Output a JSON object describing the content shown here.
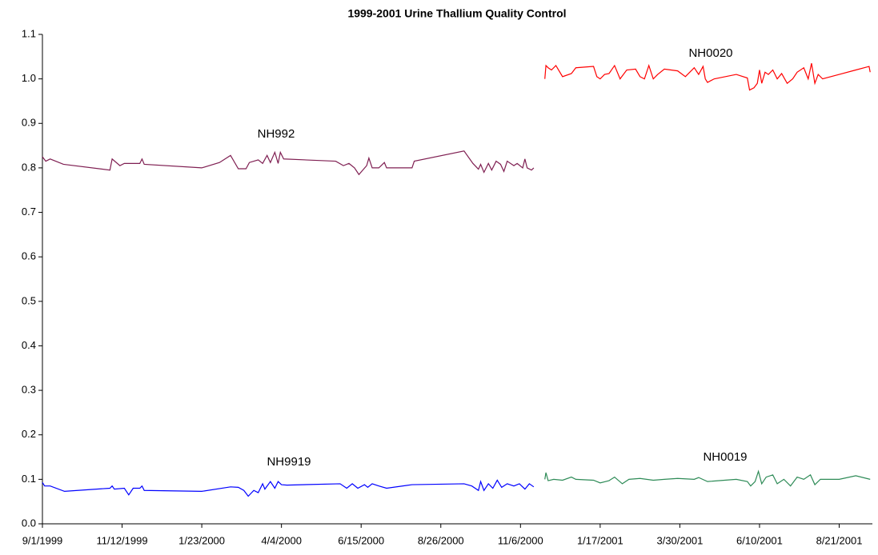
{
  "chart_data": {
    "type": "line",
    "title": "1999-2001 Urine Thallium Quality Control",
    "xlim": [
      "9/1/1999",
      "9/20/2001"
    ],
    "xticks": [
      "9/1/1999",
      "11/12/1999",
      "1/23/2000",
      "4/4/2000",
      "6/15/2000",
      "8/26/2000",
      "11/6/2000",
      "1/17/2001",
      "3/30/2001",
      "6/10/2001",
      "8/21/2001"
    ],
    "ylim": [
      0,
      1.1
    ],
    "yticks": [
      {
        "value": 0,
        "label": "0.0"
      },
      0.1,
      0.2,
      0.3,
      0.4,
      0.5,
      0.6,
      0.7,
      0.8,
      0.9,
      {
        "value": 1,
        "label": "1.0"
      },
      1.1
    ],
    "grid": false,
    "series": [
      {
        "name": "NH992",
        "color": "#7f1f52",
        "x": [
          "9/1/1999",
          "9/4/1999",
          "9/8/1999",
          "9/20/1999",
          "11/1/1999",
          "11/3/1999",
          "11/10/1999",
          "11/14/1999",
          "11/28/1999",
          "11/30/1999",
          "12/2/1999",
          "1/23/2000",
          "2/8/2000",
          "2/18/2000",
          "2/25/2000",
          "3/3/2000",
          "3/6/2000",
          "3/14/2000",
          "3/18/2000",
          "3/22/2000",
          "3/25/2000",
          "3/29/2000",
          "4/1/2000",
          "4/3/2000",
          "4/6/2000",
          "5/23/2000",
          "5/30/2000",
          "6/4/2000",
          "6/9/2000",
          "6/13/2000",
          "6/20/2000",
          "6/22/2000",
          "6/25/2000",
          "7/1/2000",
          "7/6/2000",
          "7/8/2000",
          "7/31/2000",
          "8/2/2000",
          "9/16/2000",
          "9/24/2000",
          "9/29/2000",
          "10/1/2000",
          "10/4/2000",
          "10/8/2000",
          "10/11/2000",
          "10/15/2000",
          "10/19/2000",
          "10/22/2000",
          "10/25/2000",
          "10/31/2000",
          "11/3/2000",
          "11/8/2000",
          "11/10/2000",
          "11/12/2000",
          "11/16/2000",
          "11/18/2000"
        ],
        "values": [
          0.825,
          0.815,
          0.82,
          0.808,
          0.795,
          0.82,
          0.805,
          0.81,
          0.81,
          0.82,
          0.808,
          0.8,
          0.812,
          0.828,
          0.798,
          0.798,
          0.812,
          0.818,
          0.81,
          0.828,
          0.812,
          0.835,
          0.81,
          0.835,
          0.82,
          0.815,
          0.805,
          0.81,
          0.8,
          0.785,
          0.805,
          0.822,
          0.8,
          0.8,
          0.812,
          0.8,
          0.8,
          0.815,
          0.838,
          0.81,
          0.797,
          0.808,
          0.79,
          0.81,
          0.795,
          0.815,
          0.808,
          0.792,
          0.815,
          0.805,
          0.81,
          0.8,
          0.82,
          0.8,
          0.795,
          0.8
        ]
      },
      {
        "name": "NH9919",
        "color": "#0000ff",
        "x": [
          "9/1/1999",
          "9/3/1999",
          "9/8/1999",
          "9/21/1999",
          "11/1/1999",
          "11/3/1999",
          "11/5/1999",
          "11/14/1999",
          "11/18/1999",
          "11/22/1999",
          "11/28/1999",
          "11/30/1999",
          "12/2/1999",
          "1/23/2000",
          "2/18/2000",
          "2/25/2000",
          "3/1/2000",
          "3/5/2000",
          "3/10/2000",
          "3/14/2000",
          "3/18/2000",
          "3/20/2000",
          "3/25/2000",
          "3/29/2000",
          "4/1/2000",
          "4/4/2000",
          "4/9/2000",
          "5/27/2000",
          "6/2/2000",
          "6/7/2000",
          "6/12/2000",
          "6/18/2000",
          "6/21/2000",
          "6/25/2000",
          "7/1/2000",
          "7/8/2000",
          "7/31/2000",
          "9/16/2000",
          "9/23/2000",
          "9/29/2000",
          "10/1/2000",
          "10/4/2000",
          "10/8/2000",
          "10/12/2000",
          "10/16/2000",
          "10/20/2000",
          "10/25/2000",
          "10/31/2000",
          "11/5/2000",
          "11/10/2000",
          "11/14/2000",
          "11/18/2000"
        ],
        "values": [
          0.093,
          0.085,
          0.085,
          0.073,
          0.08,
          0.085,
          0.078,
          0.08,
          0.065,
          0.08,
          0.08,
          0.085,
          0.075,
          0.073,
          0.083,
          0.082,
          0.075,
          0.062,
          0.075,
          0.07,
          0.09,
          0.078,
          0.095,
          0.08,
          0.095,
          0.088,
          0.087,
          0.09,
          0.08,
          0.09,
          0.08,
          0.088,
          0.082,
          0.09,
          0.085,
          0.08,
          0.088,
          0.09,
          0.085,
          0.075,
          0.095,
          0.075,
          0.09,
          0.08,
          0.098,
          0.082,
          0.09,
          0.085,
          0.09,
          0.078,
          0.09,
          0.083
        ]
      },
      {
        "name": "NH0020",
        "color": "#ff0000",
        "x": [
          "11/28/2000",
          "11/29/2000",
          "12/1/2000",
          "12/4/2000",
          "12/8/2000",
          "12/14/2000",
          "12/22/2000",
          "12/26/2000",
          "1/11/2001",
          "1/14/2001",
          "1/17/2001",
          "1/21/2001",
          "1/25/2001",
          "1/30/2001",
          "2/4/2001",
          "2/10/2001",
          "2/18/2001",
          "2/22/2001",
          "2/26/2001",
          "3/2/2001",
          "3/6/2001",
          "3/10/2001",
          "3/16/2001",
          "3/28/2001",
          "4/4/2001",
          "4/12/2001",
          "4/16/2001",
          "4/20/2001",
          "4/22/2001",
          "4/24/2001",
          "4/30/2001",
          "5/20/2001",
          "5/30/2001",
          "6/1/2001",
          "6/5/2001",
          "6/8/2001",
          "6/10/2001",
          "6/12/2001",
          "6/15/2001",
          "6/18/2001",
          "6/22/2001",
          "6/26/2001",
          "6/30/2001",
          "7/5/2001",
          "7/10/2001",
          "7/14/2001",
          "7/20/2001",
          "7/24/2001",
          "7/27/2001",
          "7/30/2001",
          "8/2/2001",
          "8/6/2001",
          "8/21/2001",
          "9/5/2001",
          "9/17/2001",
          "9/18/2001"
        ],
        "values": [
          1.0,
          1.03,
          1.025,
          1.02,
          1.03,
          1.005,
          1.012,
          1.025,
          1.028,
          1.005,
          1.0,
          1.01,
          1.012,
          1.03,
          1.0,
          1.02,
          1.022,
          1.005,
          1.0,
          1.03,
          1.0,
          1.01,
          1.022,
          1.018,
          1.005,
          1.025,
          1.01,
          1.028,
          1.0,
          0.992,
          1.0,
          1.01,
          1.002,
          0.975,
          0.98,
          0.99,
          1.02,
          0.99,
          1.015,
          1.01,
          1.02,
          1.0,
          1.012,
          0.99,
          1.0,
          1.015,
          1.025,
          1.0,
          1.035,
          0.99,
          1.01,
          1.0,
          1.01,
          1.02,
          1.028,
          1.015
        ]
      },
      {
        "name": "NH0019",
        "color": "#2e8b57",
        "x": [
          "11/28/2000",
          "11/29/2000",
          "12/1/2000",
          "12/6/2000",
          "12/14/2000",
          "12/22/2000",
          "12/26/2000",
          "1/11/2001",
          "1/17/2001",
          "1/25/2001",
          "1/30/2001",
          "2/6/2001",
          "2/12/2001",
          "2/22/2001",
          "3/6/2001",
          "3/16/2001",
          "3/28/2001",
          "4/12/2001",
          "4/16/2001",
          "4/24/2001",
          "5/20/2001",
          "5/30/2001",
          "6/2/2001",
          "6/6/2001",
          "6/9/2001",
          "6/12/2001",
          "6/16/2001",
          "6/22/2001",
          "6/26/2001",
          "7/2/2001",
          "7/8/2001",
          "7/14/2001",
          "7/20/2001",
          "7/26/2001",
          "7/30/2001",
          "8/4/2001",
          "8/21/2001",
          "9/5/2001",
          "9/18/2001"
        ],
        "values": [
          0.1,
          0.115,
          0.097,
          0.1,
          0.098,
          0.105,
          0.1,
          0.098,
          0.092,
          0.097,
          0.105,
          0.09,
          0.1,
          0.102,
          0.098,
          0.1,
          0.102,
          0.1,
          0.104,
          0.095,
          0.1,
          0.095,
          0.085,
          0.095,
          0.118,
          0.09,
          0.105,
          0.11,
          0.09,
          0.1,
          0.085,
          0.105,
          0.1,
          0.11,
          0.088,
          0.1,
          0.1,
          0.108,
          0.1
        ]
      }
    ]
  }
}
